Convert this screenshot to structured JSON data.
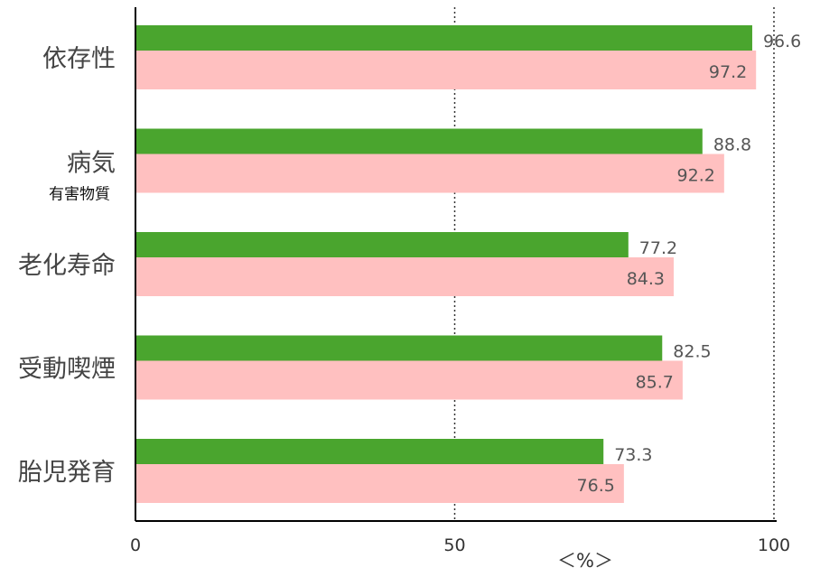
{
  "chart_data": {
    "type": "bar",
    "orientation": "horizontal",
    "categories": [
      "依存性",
      "病気",
      "老化寿命",
      "受動喫煙",
      "胎児発育"
    ],
    "category_sublabels": [
      "",
      "有害物質",
      "",
      "",
      ""
    ],
    "series": [
      {
        "values": [
          96.6,
          88.8,
          77.2,
          82.5,
          73.3
        ],
        "color": "#4aa52e"
      },
      {
        "values": [
          97.2,
          92.2,
          84.3,
          85.7,
          76.5
        ],
        "color": "#ffc0c0"
      }
    ],
    "xlim": [
      0,
      100
    ],
    "xticks": [
      "0",
      "50",
      "100"
    ],
    "xlabel": "＜%＞",
    "gridlines": "dotted at 50 and 100",
    "legend": "none"
  }
}
